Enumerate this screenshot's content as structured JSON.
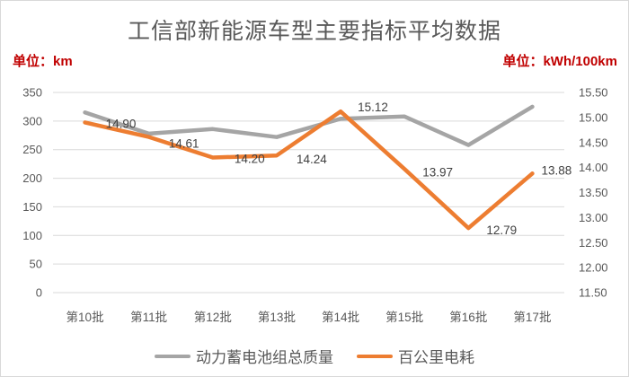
{
  "chart_data": {
    "type": "line",
    "title": "工信部新能源车型主要指标平均数据",
    "left_axis": {
      "unit_label": "单位：km",
      "min": 0,
      "max": 350,
      "step": 50,
      "ticks": [
        "350",
        "300",
        "250",
        "200",
        "150",
        "100",
        "50",
        "0"
      ]
    },
    "right_axis": {
      "unit_label": "单位：kWh/100km",
      "min": 11.5,
      "max": 15.5,
      "step": 0.5,
      "ticks": [
        "15.50",
        "15.00",
        "14.50",
        "14.00",
        "13.50",
        "13.00",
        "12.50",
        "12.00",
        "11.50"
      ]
    },
    "categories": [
      "第10批",
      "第11批",
      "第12批",
      "第13批",
      "第14批",
      "第15批",
      "第16批",
      "第17批"
    ],
    "series": [
      {
        "name": "动力蓄电池组总质量",
        "axis": "left",
        "color": "#a5a5a5",
        "values": [
          315,
          278,
          286,
          272,
          304,
          308,
          258,
          325
        ]
      },
      {
        "name": "百公里电耗",
        "axis": "right",
        "color": "#ed7d31",
        "values": [
          14.9,
          14.61,
          14.2,
          14.24,
          15.12,
          13.97,
          12.79,
          13.88
        ],
        "labels": [
          "14.90",
          "14.61",
          "14.20",
          "14.24",
          "15.12",
          "13.97",
          "12.79",
          "13.88"
        ]
      }
    ],
    "grid": "on",
    "legend_position": "bottom",
    "colors": {
      "grid_line": "#d9d9d9",
      "axis_text": "#595959",
      "data_label_text": "#404040",
      "unit_text": "#c00000",
      "title_text": "#595959"
    }
  }
}
